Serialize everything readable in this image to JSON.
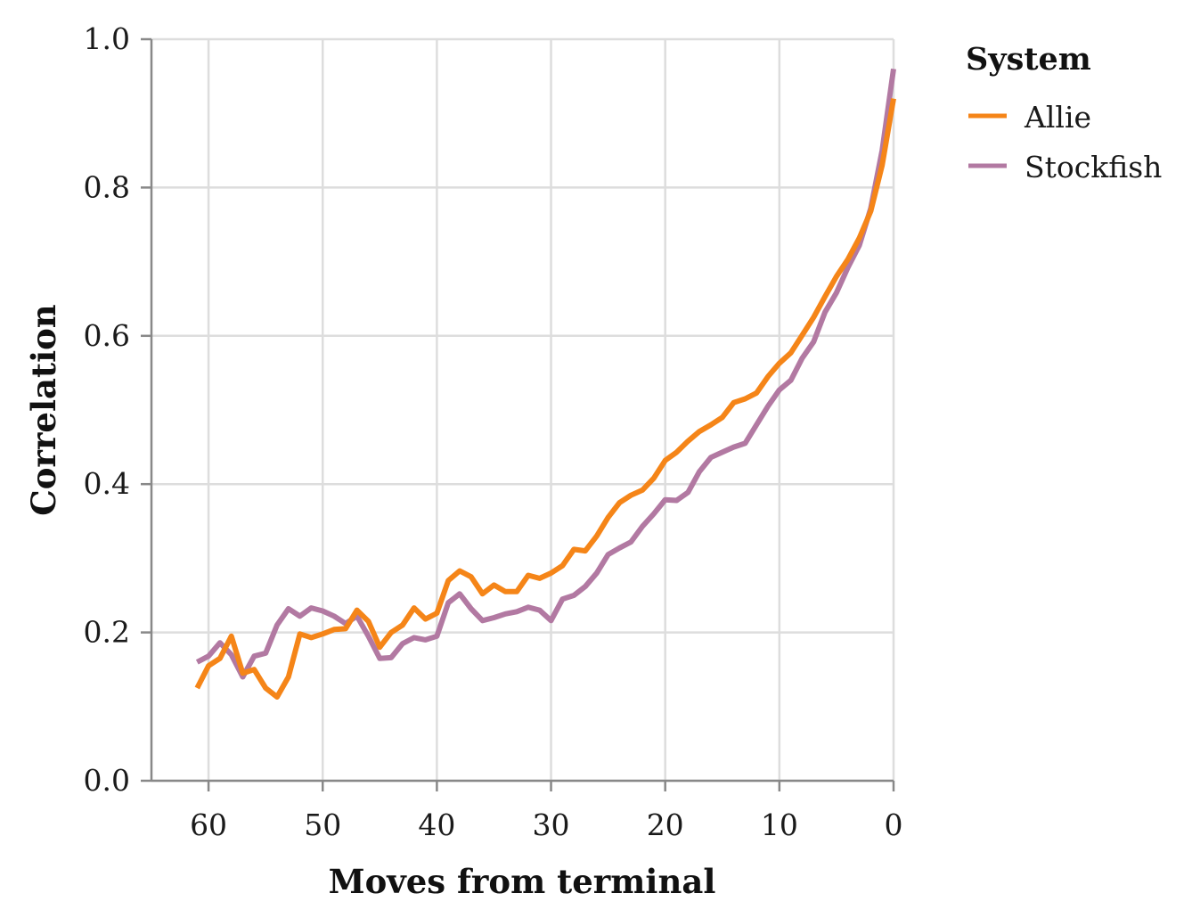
{
  "chart_data": {
    "type": "line",
    "xlabel": "Moves from terminal",
    "ylabel": "Correlation",
    "xlim": [
      65,
      0
    ],
    "ylim": [
      0,
      1
    ],
    "x_ticks": [
      60,
      50,
      40,
      30,
      20,
      10,
      0
    ],
    "y_ticks": [
      0.0,
      0.2,
      0.4,
      0.6,
      0.8,
      1.0
    ],
    "x_tick_labels": [
      "60",
      "50",
      "40",
      "30",
      "20",
      "10",
      "0"
    ],
    "y_tick_labels": [
      "0.0",
      "0.2",
      "0.4",
      "0.6",
      "0.8",
      "1.0"
    ],
    "grid": true,
    "legend": {
      "title": "System",
      "position": "top-right, outside plot"
    },
    "x": [
      61,
      60,
      59,
      58,
      57,
      56,
      55,
      54,
      53,
      52,
      51,
      50,
      49,
      48,
      47,
      46,
      45,
      44,
      43,
      42,
      41,
      40,
      39,
      38,
      37,
      36,
      35,
      34,
      33,
      32,
      31,
      30,
      29,
      28,
      27,
      26,
      25,
      24,
      23,
      22,
      21,
      20,
      19,
      18,
      17,
      16,
      15,
      14,
      13,
      12,
      11,
      10,
      9,
      8,
      7,
      6,
      5,
      4,
      3,
      2,
      1,
      0
    ],
    "series": [
      {
        "name": "Allie",
        "color": "#f58518",
        "values": [
          0.125,
          0.155,
          0.165,
          0.195,
          0.145,
          0.15,
          0.125,
          0.113,
          0.14,
          0.198,
          0.193,
          0.198,
          0.204,
          0.205,
          0.23,
          0.215,
          0.18,
          0.2,
          0.21,
          0.233,
          0.218,
          0.226,
          0.27,
          0.283,
          0.275,
          0.252,
          0.264,
          0.255,
          0.255,
          0.277,
          0.273,
          0.28,
          0.29,
          0.312,
          0.31,
          0.33,
          0.355,
          0.375,
          0.385,
          0.392,
          0.408,
          0.432,
          0.443,
          0.458,
          0.471,
          0.48,
          0.49,
          0.51,
          0.515,
          0.523,
          0.545,
          0.563,
          0.577,
          0.601,
          0.625,
          0.653,
          0.68,
          0.703,
          0.732,
          0.768,
          0.83,
          0.92
        ]
      },
      {
        "name": "Stockfish",
        "color": "#b279a2",
        "values": [
          0.16,
          0.168,
          0.186,
          0.17,
          0.14,
          0.168,
          0.172,
          0.21,
          0.232,
          0.222,
          0.233,
          0.229,
          0.222,
          0.212,
          0.222,
          0.195,
          0.165,
          0.166,
          0.185,
          0.193,
          0.19,
          0.195,
          0.24,
          0.252,
          0.232,
          0.216,
          0.22,
          0.225,
          0.228,
          0.234,
          0.23,
          0.216,
          0.245,
          0.25,
          0.262,
          0.28,
          0.305,
          0.314,
          0.322,
          0.343,
          0.36,
          0.379,
          0.378,
          0.389,
          0.417,
          0.436,
          0.443,
          0.45,
          0.455,
          0.48,
          0.505,
          0.527,
          0.54,
          0.57,
          0.592,
          0.632,
          0.658,
          0.692,
          0.722,
          0.772,
          0.85,
          0.96
        ]
      }
    ]
  }
}
